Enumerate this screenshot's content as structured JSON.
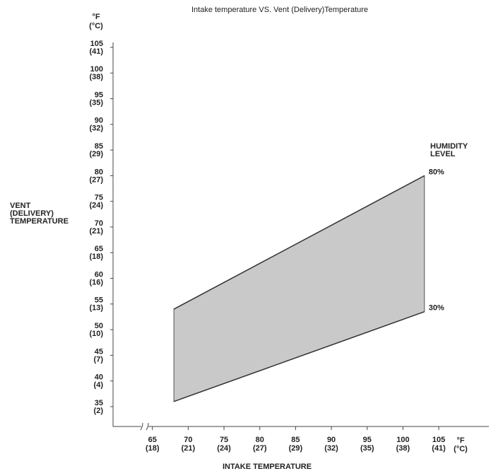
{
  "chart_data": {
    "type": "band",
    "title": "Intake temperature VS. Vent (Delivery)Temperature",
    "y_label": [
      "VENT",
      "(DELIVERY)",
      "TEMPERATURE"
    ],
    "x_label": "INTAKE TEMPERATURE",
    "y_unit": "°F",
    "y_unit_sub": "(°C)",
    "x_unit": "°F",
    "x_unit_sub": "(°C)",
    "legend_title": [
      "HUMIDITY",
      "LEVEL"
    ],
    "x": [
      68,
      103
    ],
    "series": [
      {
        "name": "80%",
        "color": "#333333",
        "values": [
          54,
          80
        ]
      },
      {
        "name": "30%",
        "color": "#333333",
        "values": [
          36,
          53.5
        ]
      }
    ],
    "fill_color": "#c9c9c9",
    "xlim": [
      59.5,
      112
    ],
    "ylim": [
      34.3,
      105
    ],
    "xticks": [
      {
        "value": 65,
        "label": "65",
        "sublabel": "(18)"
      },
      {
        "value": 70,
        "label": "70",
        "sublabel": "(21)"
      },
      {
        "value": 75,
        "label": "75",
        "sublabel": "(24)"
      },
      {
        "value": 80,
        "label": "80",
        "sublabel": "(27)"
      },
      {
        "value": 85,
        "label": "85",
        "sublabel": "(29)"
      },
      {
        "value": 90,
        "label": "90",
        "sublabel": "(32)"
      },
      {
        "value": 95,
        "label": "95",
        "sublabel": "(35)"
      },
      {
        "value": 100,
        "label": "100",
        "sublabel": "(38)"
      },
      {
        "value": 105,
        "label": "105",
        "sublabel": "(41)"
      }
    ],
    "yticks": [
      {
        "value": 105,
        "label": "105",
        "sublabel": "(41)"
      },
      {
        "value": 100,
        "label": "100",
        "sublabel": "(38)"
      },
      {
        "value": 95,
        "label": "95",
        "sublabel": "(35)"
      },
      {
        "value": 90,
        "label": "90",
        "sublabel": "(32)"
      },
      {
        "value": 85,
        "label": "85",
        "sublabel": "(29)"
      },
      {
        "value": 80,
        "label": "80",
        "sublabel": "(27)"
      },
      {
        "value": 75,
        "label": "75",
        "sublabel": "(24)"
      },
      {
        "value": 70,
        "label": "70",
        "sublabel": "(21)"
      },
      {
        "value": 65,
        "label": "65",
        "sublabel": "(18)"
      },
      {
        "value": 60,
        "label": "60",
        "sublabel": "(16)"
      },
      {
        "value": 55,
        "label": "55",
        "sublabel": "(13)"
      },
      {
        "value": 50,
        "label": "50",
        "sublabel": "(10)"
      },
      {
        "value": 45,
        "label": "45",
        "sublabel": "(7)"
      },
      {
        "value": 40,
        "label": "40",
        "sublabel": "(4)"
      },
      {
        "value": 35,
        "label": "35",
        "sublabel": "(2)"
      }
    ]
  }
}
